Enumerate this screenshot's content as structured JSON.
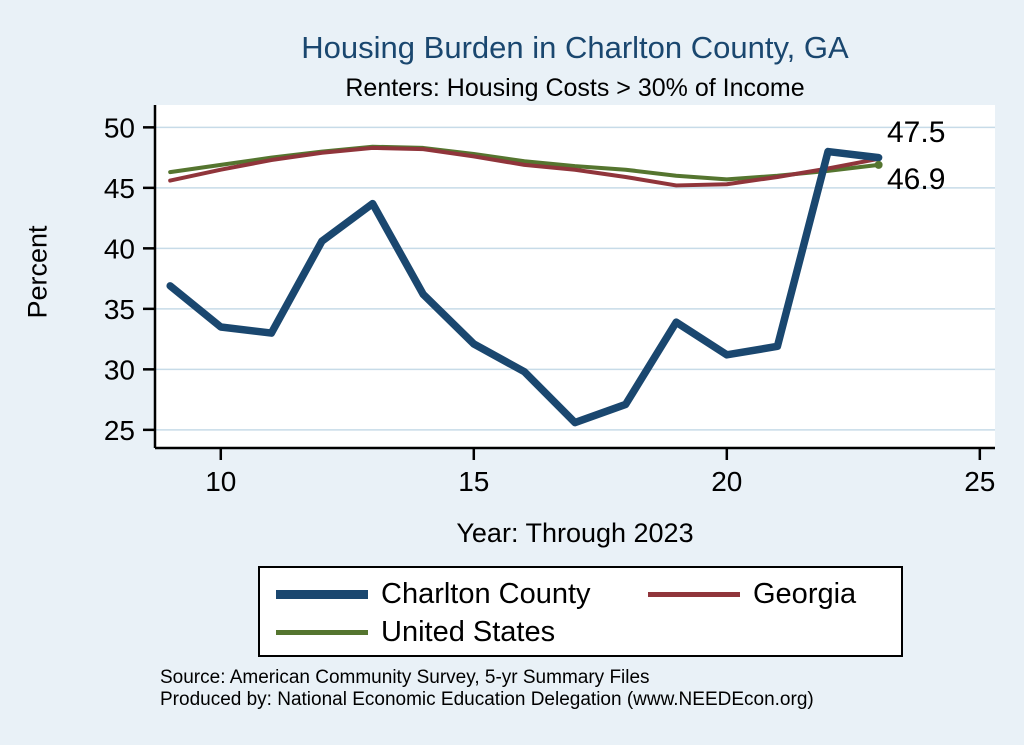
{
  "title": "Housing Burden in Charlton County, GA",
  "subtitle": "Renters: Housing Costs > 30% of Income",
  "chart_data": {
    "type": "line",
    "x": [
      9,
      10,
      11,
      12,
      13,
      14,
      15,
      16,
      17,
      18,
      19,
      20,
      21,
      22,
      23
    ],
    "series": [
      {
        "name": "Charlton County",
        "color": "#1a476f",
        "width": 7.5,
        "values": [
          36.9,
          33.5,
          33.0,
          40.6,
          43.7,
          36.2,
          32.1,
          29.8,
          25.6,
          27.1,
          33.9,
          31.2,
          31.9,
          48.0,
          47.5
        ]
      },
      {
        "name": "Georgia",
        "color": "#90353b",
        "width": 4,
        "values": [
          45.6,
          46.5,
          47.3,
          47.9,
          48.3,
          48.2,
          47.6,
          46.9,
          46.5,
          45.9,
          45.2,
          45.3,
          45.9,
          46.6,
          47.4
        ]
      },
      {
        "name": "United States",
        "color": "#55752f",
        "width": 4,
        "values": [
          46.3,
          46.9,
          47.5,
          48.0,
          48.4,
          48.3,
          47.8,
          47.2,
          46.8,
          46.5,
          46.0,
          45.7,
          46.0,
          46.4,
          46.9
        ]
      }
    ],
    "xlabel": "Year: Through 2023",
    "ylabel": "Percent",
    "xticks": [
      10,
      15,
      20,
      25
    ],
    "yticks": [
      25,
      30,
      35,
      40,
      45,
      50
    ],
    "xlim": [
      8.7,
      25.3
    ],
    "ylim": [
      23.5,
      51.6
    ],
    "grid": "horizontal",
    "legend_position": "bottom",
    "end_labels": [
      "47.5",
      "46.9"
    ]
  },
  "footer": {
    "source": "Source: American Community Survey, 5-yr Summary Files",
    "produced_by": "Produced by: National Economic Education Delegation (www.NEEDEcon.org)"
  },
  "colors": {
    "background": "#e9f1f7",
    "plot_bg": "#ffffff",
    "grid": "#c7dbe8",
    "axis": "#000000",
    "title": "#1a476f"
  }
}
